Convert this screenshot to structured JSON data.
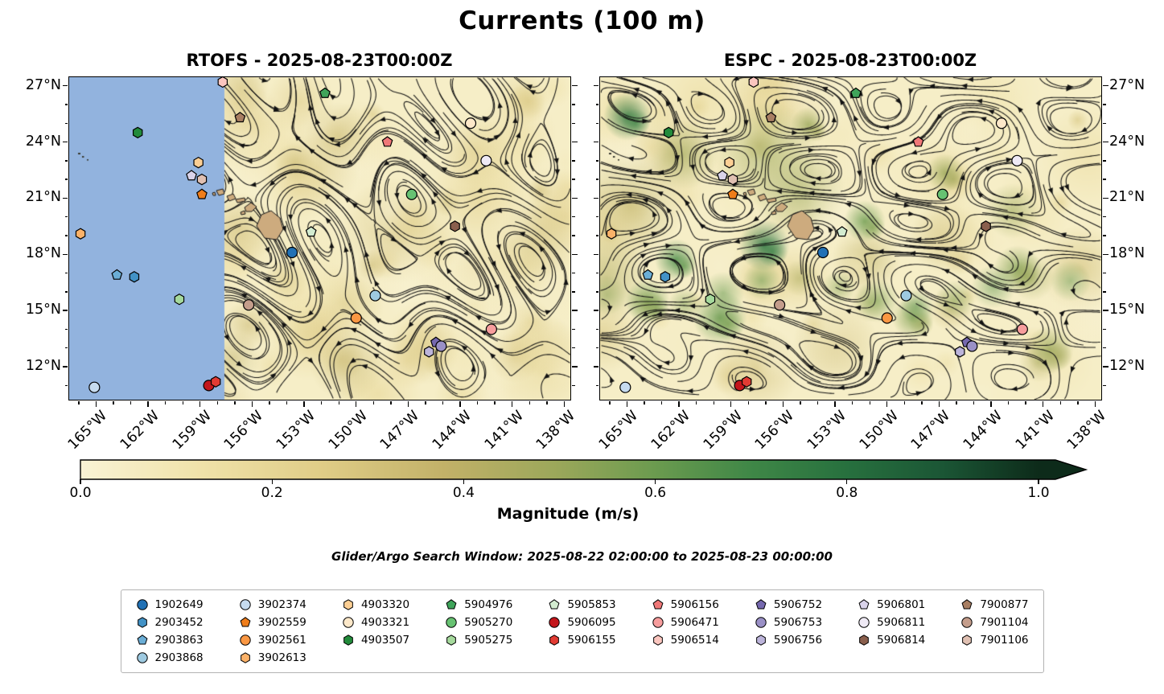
{
  "chart_data": {
    "type": "streamplot-map",
    "title": "Currents (100 m)",
    "subplots": [
      {
        "model": "RTOFS",
        "valid_time": "2025-08-23T00:00Z",
        "title": "RTOFS - 2025-08-23T00:00Z",
        "masked_no_data_west_of_lon_w": 157.6
      },
      {
        "model": "ESPC",
        "valid_time": "2025-08-23T00:00Z",
        "title": "ESPC - 2025-08-23T00:00Z",
        "masked_no_data_west_of_lon_w": null
      }
    ],
    "x_tick_labels": [
      "165°W",
      "162°W",
      "159°W",
      "156°W",
      "153°W",
      "150°W",
      "147°W",
      "144°W",
      "141°W",
      "138°W"
    ],
    "x_ticks_lon_w": [
      165,
      162,
      159,
      156,
      153,
      150,
      147,
      144,
      141,
      138
    ],
    "y_tick_labels": [
      "27°N",
      "24°N",
      "21°N",
      "18°N",
      "15°N",
      "12°N"
    ],
    "y_ticks_lat_n": [
      27,
      24,
      21,
      18,
      15,
      12
    ],
    "lon_w_range": [
      166.6,
      137.6
    ],
    "lat_n_range": [
      27.5,
      10.2
    ],
    "colorbar": {
      "label": "Magnitude (m/s)",
      "tick_labels": [
        "0.0",
        "0.2",
        "0.4",
        "0.6",
        "0.8",
        "1.0"
      ],
      "tick_values": [
        0,
        0.2,
        0.4,
        0.6,
        0.8,
        1.0
      ],
      "range": [
        0,
        1
      ],
      "extend": "max"
    },
    "footnote": "Glider/Argo Search Window: 2025-08-22 02:00:00 to 2025-08-23 00:00:00",
    "floats": [
      {
        "id": "1902649",
        "marker": "circle",
        "color": "#2171b5",
        "lon_w": 153.7,
        "lat_n": 18.1
      },
      {
        "id": "2903452",
        "marker": "hexagon",
        "color": "#4292c6",
        "lon_w": 162.8,
        "lat_n": 16.8
      },
      {
        "id": "2903863",
        "marker": "pentagon",
        "color": "#6baed6",
        "lon_w": 163.8,
        "lat_n": 16.9
      },
      {
        "id": "2903868",
        "marker": "circle",
        "color": "#9ecae1",
        "lon_w": 148.9,
        "lat_n": 15.8
      },
      {
        "id": "3902374",
        "marker": "circle",
        "color": "#c6dbef",
        "lon_w": 165.1,
        "lat_n": 10.9
      },
      {
        "id": "3902559",
        "marker": "pentagon",
        "color": "#ef7d1a",
        "lon_w": 158.9,
        "lat_n": 21.2
      },
      {
        "id": "3902561",
        "marker": "circle",
        "color": "#fa9743",
        "lon_w": 150.0,
        "lat_n": 14.6
      },
      {
        "id": "3902613",
        "marker": "hexagon",
        "color": "#fbb269",
        "lon_w": 165.9,
        "lat_n": 19.1
      },
      {
        "id": "4903320",
        "marker": "hexagon",
        "color": "#fccf94",
        "lon_w": 159.1,
        "lat_n": 22.9
      },
      {
        "id": "4903321",
        "marker": "circle",
        "color": "#fde8c9",
        "lon_w": 143.4,
        "lat_n": 25.0
      },
      {
        "id": "4903507",
        "marker": "hexagon",
        "color": "#228b3b",
        "lon_w": 162.6,
        "lat_n": 24.5
      },
      {
        "id": "5904976",
        "marker": "pentagon",
        "color": "#3fa45a",
        "lon_w": 151.8,
        "lat_n": 26.6
      },
      {
        "id": "5905270",
        "marker": "circle",
        "color": "#67c272",
        "lon_w": 146.8,
        "lat_n": 21.2
      },
      {
        "id": "5905275",
        "marker": "hexagon",
        "color": "#a5d99c",
        "lon_w": 160.2,
        "lat_n": 15.6
      },
      {
        "id": "5905853",
        "marker": "pentagon",
        "color": "#d3ecd0",
        "lon_w": 152.6,
        "lat_n": 19.2
      },
      {
        "id": "5906095",
        "marker": "circle",
        "color": "#c3161b",
        "lon_w": 158.5,
        "lat_n": 11.0
      },
      {
        "id": "5906155",
        "marker": "hexagon",
        "color": "#e23b33",
        "lon_w": 158.1,
        "lat_n": 11.2
      },
      {
        "id": "5906156",
        "marker": "pentagon",
        "color": "#f07878",
        "lon_w": 148.2,
        "lat_n": 24.0
      },
      {
        "id": "5906471",
        "marker": "circle",
        "color": "#f79d9d",
        "lon_w": 142.2,
        "lat_n": 14.0
      },
      {
        "id": "5906514",
        "marker": "hexagon",
        "color": "#fbc6bf",
        "lon_w": 157.7,
        "lat_n": 27.2
      },
      {
        "id": "5906752",
        "marker": "pentagon",
        "color": "#7568ae",
        "lon_w": 145.4,
        "lat_n": 13.3
      },
      {
        "id": "5906753",
        "marker": "circle",
        "color": "#9a90c6",
        "lon_w": 145.1,
        "lat_n": 13.1
      },
      {
        "id": "5906756",
        "marker": "hexagon",
        "color": "#bcb4da",
        "lon_w": 145.8,
        "lat_n": 12.8
      },
      {
        "id": "5906801",
        "marker": "pentagon",
        "color": "#d9d3ea",
        "lon_w": 159.5,
        "lat_n": 22.2
      },
      {
        "id": "5906811",
        "marker": "circle",
        "color": "#efeaf5",
        "lon_w": 142.5,
        "lat_n": 23.0
      },
      {
        "id": "5906814",
        "marker": "hexagon",
        "color": "#8a5f4d",
        "lon_w": 144.3,
        "lat_n": 19.5
      },
      {
        "id": "7900877",
        "marker": "pentagon",
        "color": "#a87e62",
        "lon_w": 156.7,
        "lat_n": 25.3
      },
      {
        "id": "7901104",
        "marker": "circle",
        "color": "#c49d8b",
        "lon_w": 156.2,
        "lat_n": 15.3
      },
      {
        "id": "7901106",
        "marker": "hexagon",
        "color": "#e0c0b2",
        "lon_w": 158.9,
        "lat_n": 22.0
      }
    ],
    "legend_columns": [
      4,
      4,
      3,
      3,
      3,
      3,
      3,
      3,
      3
    ]
  },
  "style": {
    "no_data_color": "#92b3de",
    "land_color": "#cdab7e",
    "stream_color": "#121212",
    "magnitude_colormap": [
      {
        "v": 0.0,
        "c": "#f9f3d5"
      },
      {
        "v": 0.12,
        "c": "#f0e3ab"
      },
      {
        "v": 0.25,
        "c": "#e0cd87"
      },
      {
        "v": 0.38,
        "c": "#c2b168"
      },
      {
        "v": 0.5,
        "c": "#9aa75a"
      },
      {
        "v": 0.6,
        "c": "#6b9b4f"
      },
      {
        "v": 0.7,
        "c": "#3f8747"
      },
      {
        "v": 0.8,
        "c": "#27703e"
      },
      {
        "v": 0.9,
        "c": "#1b5635"
      },
      {
        "v": 1.0,
        "c": "#0d2b1a"
      }
    ]
  }
}
